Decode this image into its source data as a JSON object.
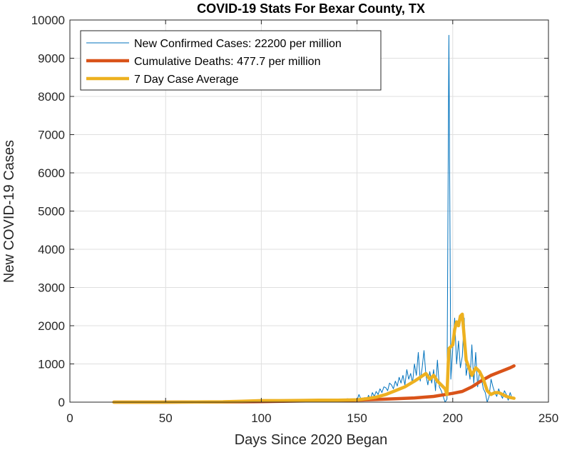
{
  "chart_data": {
    "type": "line",
    "title": "COVID-19 Stats For Bexar County, TX",
    "xlabel": "Days Since 2020 Began",
    "ylabel": "New COVID-19 Cases",
    "xlim": [
      0,
      250
    ],
    "ylim": [
      0,
      10000
    ],
    "xticks": [
      0,
      50,
      100,
      150,
      200,
      250
    ],
    "yticks": [
      0,
      1000,
      2000,
      3000,
      4000,
      5000,
      6000,
      7000,
      8000,
      9000,
      10000
    ],
    "grid": true,
    "legend_position": "top-left",
    "series": [
      {
        "name": "New Confirmed Cases: 22200 per million",
        "color": "#0072BD",
        "line": "thin",
        "x": [
          23,
          40,
          60,
          70,
          80,
          88,
          92,
          95,
          100,
          105,
          110,
          115,
          120,
          125,
          130,
          135,
          140,
          145,
          150,
          151,
          152,
          153,
          154,
          155,
          156,
          157,
          158,
          159,
          160,
          161,
          162,
          163,
          164,
          165,
          166,
          167,
          168,
          169,
          170,
          171,
          172,
          173,
          174,
          175,
          176,
          177,
          178,
          179,
          180,
          181,
          182,
          183,
          184,
          185,
          186,
          187,
          188,
          189,
          190,
          191,
          192,
          193,
          194,
          195,
          196,
          197,
          198,
          199,
          200,
          201,
          202,
          203,
          204,
          205,
          206,
          207,
          208,
          209,
          210,
          211,
          212,
          213,
          214,
          215,
          216,
          217,
          218,
          219,
          220,
          221,
          222,
          223,
          224,
          225,
          226,
          227,
          228,
          229,
          230,
          231,
          232
        ],
        "y": [
          0,
          0,
          5,
          10,
          20,
          40,
          55,
          30,
          60,
          45,
          35,
          55,
          40,
          70,
          50,
          80,
          40,
          90,
          50,
          200,
          80,
          60,
          120,
          40,
          180,
          70,
          250,
          150,
          280,
          200,
          350,
          250,
          400,
          380,
          300,
          500,
          450,
          350,
          550,
          420,
          650,
          500,
          700,
          450,
          850,
          600,
          750,
          500,
          1000,
          700,
          1300,
          550,
          900,
          1350,
          700,
          450,
          800,
          500,
          850,
          300,
          1100,
          400,
          300,
          150,
          0,
          80,
          9600,
          600,
          1400,
          2200,
          1000,
          1600,
          900,
          1200,
          2200,
          700,
          1000,
          600,
          1500,
          500,
          1300,
          400,
          800,
          600,
          350,
          250,
          0,
          150,
          600,
          400,
          250,
          150,
          350,
          200,
          100,
          300,
          200,
          50,
          250,
          100,
          120
        ]
      },
      {
        "name": "Cumulative Deaths: 477.7 per million",
        "color": "#D95319",
        "line": "thick",
        "x": [
          23,
          50,
          80,
          100,
          120,
          140,
          150,
          160,
          170,
          180,
          190,
          195,
          200,
          205,
          210,
          215,
          220,
          225,
          230,
          232
        ],
        "y": [
          0,
          0,
          5,
          15,
          30,
          45,
          55,
          70,
          90,
          110,
          150,
          190,
          230,
          280,
          400,
          560,
          700,
          800,
          900,
          950
        ]
      },
      {
        "name": "7 Day Case Average",
        "color": "#EDB120",
        "line": "thick",
        "x": [
          23,
          50,
          80,
          90,
          100,
          110,
          120,
          130,
          140,
          150,
          155,
          160,
          165,
          170,
          175,
          180,
          183,
          186,
          188,
          190,
          192,
          194,
          196,
          197,
          198,
          200,
          201,
          202,
          203,
          204,
          205,
          207,
          210,
          212,
          214,
          216,
          218,
          220,
          222,
          224,
          226,
          228,
          230,
          232
        ],
        "y": [
          0,
          0,
          10,
          25,
          40,
          40,
          45,
          50,
          50,
          60,
          90,
          130,
          200,
          300,
          400,
          550,
          650,
          750,
          600,
          700,
          550,
          450,
          350,
          200,
          1400,
          1500,
          1900,
          2100,
          2000,
          2250,
          2300,
          1100,
          700,
          900,
          800,
          600,
          300,
          200,
          250,
          250,
          200,
          150,
          120,
          100
        ]
      }
    ]
  }
}
